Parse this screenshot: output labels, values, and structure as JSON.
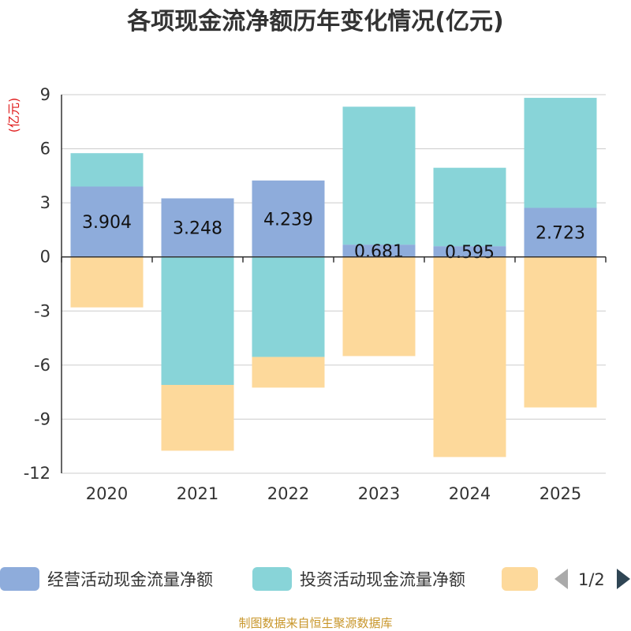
{
  "chart_data": {
    "type": "bar",
    "stacked": true,
    "title": "各项现金流净额历年变化情况(亿元)",
    "unit": "(亿元)",
    "categories": [
      "2020",
      "2021",
      "2022",
      "2023",
      "2024",
      "2025"
    ],
    "ylim": [
      -12,
      9
    ],
    "yticks": [
      9,
      6,
      3,
      0,
      -3,
      -6,
      -9,
      -12
    ],
    "series": [
      {
        "name": "经营活动现金流量净额",
        "color": "#8eacdb",
        "values": [
          3.904,
          3.248,
          4.239,
          0.681,
          0.595,
          2.723
        ],
        "labels": [
          "3.904",
          "3.248",
          "4.239",
          "0.681",
          "0.595",
          "2.723"
        ]
      },
      {
        "name": "投资活动现金流量净额",
        "color": "#88d4d8",
        "values": [
          1.85,
          -7.1,
          -5.55,
          7.65,
          4.35,
          6.1
        ]
      },
      {
        "name": "",
        "color": "#fdd99b",
        "values": [
          -2.8,
          -3.65,
          -1.7,
          -5.5,
          -11.1,
          -8.35
        ]
      }
    ],
    "legend": {
      "page": "1/2"
    },
    "source": "制图数据来自恒生聚源数据库"
  }
}
